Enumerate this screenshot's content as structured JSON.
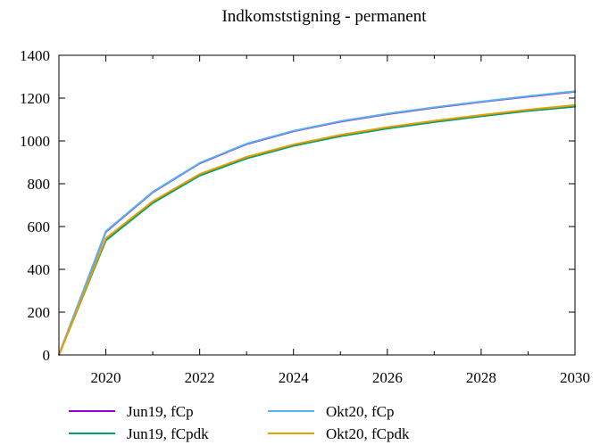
{
  "chart_data": {
    "type": "line",
    "title": "Indkomststigning - permanent",
    "xlabel": "",
    "ylabel": "",
    "xlim": [
      2019,
      2030
    ],
    "ylim": [
      0,
      1400
    ],
    "x_ticks": [
      2020,
      2022,
      2024,
      2026,
      2028,
      2030
    ],
    "y_ticks": [
      0,
      200,
      400,
      600,
      800,
      1000,
      1200,
      1400
    ],
    "grid": false,
    "legend_position": "bottom",
    "x": [
      2019,
      2020,
      2021,
      2022,
      2023,
      2024,
      2025,
      2026,
      2027,
      2028,
      2029,
      2030
    ],
    "series": [
      {
        "name": "Jun19, fCp",
        "color": "#9400d3",
        "values": [
          0,
          575,
          760,
          895,
          985,
          1045,
          1090,
          1125,
          1155,
          1182,
          1207,
          1230
        ]
      },
      {
        "name": "Okt20, fCp",
        "color": "#56b4e9",
        "values": [
          0,
          578,
          762,
          897,
          987,
          1047,
          1092,
          1127,
          1157,
          1184,
          1209,
          1232
        ]
      },
      {
        "name": "Jun19, fCpdk",
        "color": "#009e73",
        "values": [
          0,
          535,
          710,
          838,
          918,
          977,
          1022,
          1058,
          1088,
          1115,
          1140,
          1160
        ]
      },
      {
        "name": "Okt20, fCpdk",
        "color": "#e69f00",
        "values": [
          0,
          545,
          718,
          845,
          925,
          983,
          1028,
          1064,
          1094,
          1121,
          1146,
          1167
        ]
      }
    ]
  }
}
